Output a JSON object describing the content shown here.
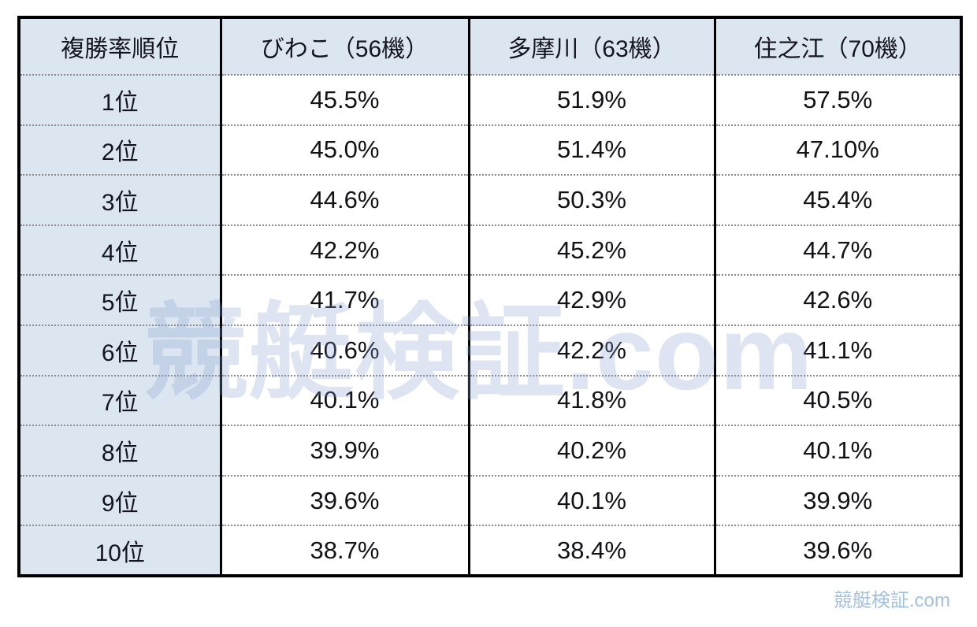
{
  "chart_data": {
    "type": "table",
    "columns": [
      "複勝率順位",
      "びわこ（56機）",
      "多摩川（63機）",
      "住之江（70機）"
    ],
    "rows": [
      [
        "1位",
        "45.5%",
        "51.9%",
        "57.5%"
      ],
      [
        "2位",
        "45.0%",
        "51.4%",
        "47.10%"
      ],
      [
        "3位",
        "44.6%",
        "50.3%",
        "45.4%"
      ],
      [
        "4位",
        "42.2%",
        "45.2%",
        "44.7%"
      ],
      [
        "5位",
        "41.7%",
        "42.9%",
        "42.6%"
      ],
      [
        "6位",
        "40.6%",
        "42.2%",
        "41.1%"
      ],
      [
        "7位",
        "40.1%",
        "41.8%",
        "40.5%"
      ],
      [
        "8位",
        "39.9%",
        "40.2%",
        "40.1%"
      ],
      [
        "9位",
        "39.6%",
        "40.1%",
        "39.9%"
      ],
      [
        "10位",
        "38.7%",
        "38.4%",
        "39.6%"
      ]
    ],
    "title": "",
    "legend": "none",
    "grid": "on"
  },
  "watermarks": {
    "center": "競艇検証.com",
    "corner": "競艇検証.com"
  },
  "colors": {
    "header_bg": "#dce6f1",
    "grid_border": "#000000",
    "hairline": "#8a8a8a",
    "watermark_center": "#8a9ed0",
    "watermark_corner": "#a3c0dd",
    "text": "#15151f"
  }
}
